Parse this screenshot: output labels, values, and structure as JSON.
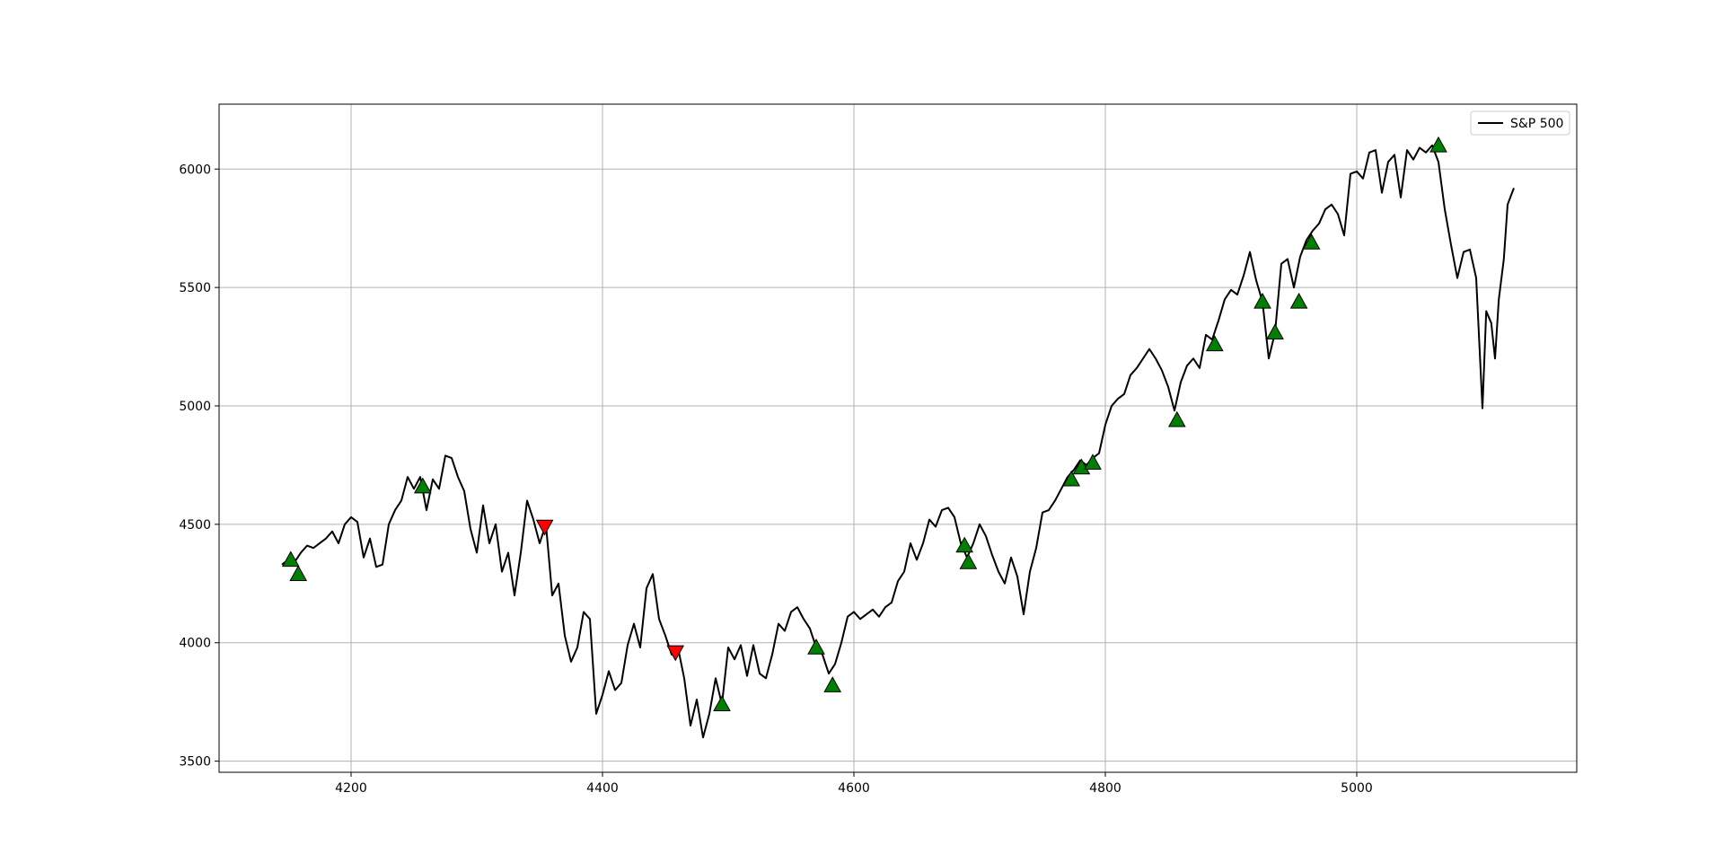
{
  "chart_data": {
    "type": "line",
    "x": [
      4145,
      4150,
      4155,
      4160,
      4165,
      4170,
      4175,
      4180,
      4185,
      4190,
      4195,
      4200,
      4205,
      4210,
      4215,
      4220,
      4225,
      4230,
      4235,
      4240,
      4245,
      4250,
      4255,
      4260,
      4265,
      4270,
      4275,
      4280,
      4285,
      4290,
      4295,
      4300,
      4305,
      4310,
      4315,
      4320,
      4325,
      4330,
      4335,
      4340,
      4345,
      4350,
      4355,
      4360,
      4365,
      4370,
      4375,
      4380,
      4385,
      4390,
      4395,
      4400,
      4405,
      4410,
      4415,
      4420,
      4425,
      4430,
      4435,
      4440,
      4445,
      4450,
      4455,
      4460,
      4465,
      4470,
      4475,
      4480,
      4485,
      4490,
      4495,
      4500,
      4505,
      4510,
      4515,
      4520,
      4525,
      4530,
      4535,
      4540,
      4545,
      4550,
      4555,
      4560,
      4565,
      4570,
      4575,
      4580,
      4585,
      4590,
      4595,
      4600,
      4605,
      4610,
      4615,
      4620,
      4625,
      4630,
      4635,
      4640,
      4645,
      4650,
      4655,
      4660,
      4665,
      4670,
      4675,
      4680,
      4685,
      4690,
      4695,
      4700,
      4705,
      4710,
      4715,
      4720,
      4725,
      4730,
      4735,
      4740,
      4745,
      4750,
      4755,
      4760,
      4765,
      4770,
      4775,
      4780,
      4785,
      4790,
      4795,
      4800,
      4805,
      4810,
      4815,
      4820,
      4825,
      4830,
      4835,
      4840,
      4845,
      4850,
      4855,
      4860,
      4865,
      4870,
      4875,
      4880,
      4885,
      4890,
      4895,
      4900,
      4905,
      4910,
      4915,
      4920,
      4925,
      4930,
      4935,
      4940,
      4945,
      4950,
      4955,
      4960,
      4965,
      4970,
      4975,
      4980,
      4985,
      4990,
      4995,
      5000,
      5005,
      5010,
      5015,
      5020,
      5025,
      5030,
      5035,
      5040,
      5045,
      5050,
      5055,
      5060,
      5065,
      5070,
      5075,
      5080,
      5085,
      5090,
      5095,
      5100,
      5103,
      5107,
      5110,
      5113,
      5117,
      5120,
      5125
    ],
    "series": [
      {
        "name": "S&P 500",
        "color": "#000000",
        "values": [
          4330,
          4350,
          4340,
          4380,
          4410,
          4400,
          4420,
          4440,
          4470,
          4420,
          4500,
          4530,
          4510,
          4360,
          4440,
          4320,
          4330,
          4500,
          4560,
          4600,
          4700,
          4650,
          4700,
          4560,
          4690,
          4650,
          4790,
          4780,
          4700,
          4640,
          4480,
          4380,
          4580,
          4420,
          4500,
          4300,
          4380,
          4200,
          4380,
          4600,
          4520,
          4420,
          4500,
          4200,
          4250,
          4030,
          3920,
          3980,
          4130,
          4100,
          3700,
          3780,
          3880,
          3800,
          3830,
          3990,
          4080,
          3980,
          4230,
          4290,
          4100,
          4030,
          3950,
          3980,
          3850,
          3650,
          3760,
          3600,
          3700,
          3850,
          3740,
          3980,
          3930,
          3990,
          3860,
          3990,
          3870,
          3850,
          3950,
          4080,
          4050,
          4130,
          4150,
          4100,
          4060,
          3980,
          3950,
          3870,
          3910,
          4000,
          4110,
          4130,
          4100,
          4120,
          4140,
          4110,
          4150,
          4170,
          4260,
          4300,
          4420,
          4350,
          4420,
          4520,
          4490,
          4560,
          4570,
          4530,
          4420,
          4360,
          4420,
          4500,
          4450,
          4370,
          4300,
          4250,
          4360,
          4280,
          4120,
          4300,
          4400,
          4550,
          4560,
          4600,
          4650,
          4700,
          4730,
          4770,
          4750,
          4780,
          4800,
          4920,
          5000,
          5030,
          5050,
          5130,
          5160,
          5200,
          5240,
          5200,
          5150,
          5080,
          4980,
          5100,
          5170,
          5200,
          5160,
          5300,
          5280,
          5360,
          5450,
          5490,
          5470,
          5550,
          5650,
          5530,
          5440,
          5200,
          5310,
          5600,
          5620,
          5500,
          5630,
          5700,
          5740,
          5770,
          5830,
          5850,
          5810,
          5720,
          5980,
          5990,
          5960,
          6070,
          6080,
          5900,
          6030,
          6060,
          5880,
          6080,
          6040,
          6090,
          6070,
          6100,
          6030,
          5830,
          5680,
          5540,
          5650,
          5660,
          5540,
          4990,
          5400,
          5350,
          5200,
          5450,
          5620,
          5850,
          5920
        ]
      }
    ],
    "buy_markers": {
      "color": "#008000",
      "x": [
        4152,
        4158,
        4257,
        4495,
        4570,
        4583,
        4688,
        4691,
        4773,
        4781,
        4790,
        4857,
        4887,
        4925,
        4935,
        4954,
        4964,
        5065
      ],
      "values": [
        4350,
        4290,
        4660,
        3740,
        3980,
        3820,
        4410,
        4340,
        4690,
        4740,
        4760,
        4940,
        5260,
        5440,
        5310,
        5440,
        5690,
        6100
      ]
    },
    "sell_markers": {
      "color": "#ff0000",
      "x": [
        4354,
        4458
      ],
      "values": [
        4490,
        3960
      ]
    },
    "xlim": [
      4095,
      5175
    ],
    "ylim": [
      3453,
      6274
    ],
    "xticks": [
      4200,
      4400,
      4600,
      4800,
      5000
    ],
    "yticks": [
      3500,
      4000,
      4500,
      5000,
      5500,
      6000
    ],
    "grid": true,
    "legend": "upper right"
  }
}
